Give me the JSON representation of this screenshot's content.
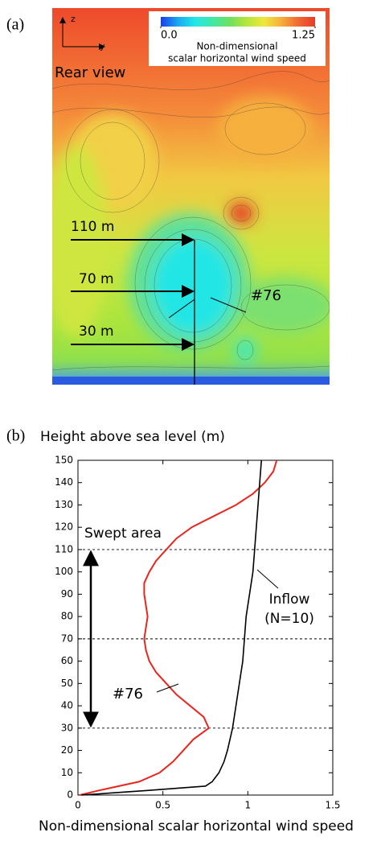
{
  "chart_data": [
    {
      "type": "contour",
      "panel_label": "(a)",
      "z_label": "z",
      "y_label": "y",
      "view_label": "Rear view",
      "colorbar": {
        "lim": [
          0,
          1.25
        ],
        "ticks": [
          {
            "value": 0,
            "label": "0.0"
          },
          1.25
        ],
        "colors": [
          "#1c3ee8",
          "#1aa8f0",
          "#22e8e8",
          "#40e8a8",
          "#6ee060",
          "#b4e63c",
          "#eee83a",
          "#f7b03a",
          "#f06a32",
          "#e63c28"
        ],
        "label_lines": [
          "Non-dimensional",
          "scalar horizontal wind speed"
        ]
      },
      "height_labels": [
        "110 m",
        "70 m",
        "30 m"
      ],
      "turbine_label": "#76"
    },
    {
      "type": "line",
      "panel_label": "(b)",
      "title": "Height above sea level (m)",
      "xlabel": "Non-dimensional scalar horizontal wind speed",
      "y": [
        0,
        2,
        4,
        6,
        10,
        15,
        20,
        25,
        30,
        35,
        40,
        45,
        50,
        55,
        60,
        65,
        70,
        75,
        80,
        85,
        90,
        95,
        100,
        105,
        110,
        115,
        120,
        125,
        130,
        135,
        140,
        145,
        150
      ],
      "series": [
        {
          "name": "#76",
          "color": "#e8261e",
          "values": [
            0.01,
            0.12,
            0.24,
            0.36,
            0.48,
            0.56,
            0.62,
            0.68,
            0.77,
            0.74,
            0.66,
            0.58,
            0.52,
            0.46,
            0.42,
            0.4,
            0.39,
            0.4,
            0.41,
            0.4,
            0.39,
            0.39,
            0.42,
            0.46,
            0.52,
            0.58,
            0.67,
            0.8,
            0.93,
            1.03,
            1.1,
            1.15,
            1.17
          ]
        },
        {
          "name": "Inflow (N=10)",
          "color": "#000000",
          "values": [
            0.02,
            0.4,
            0.75,
            0.79,
            0.83,
            0.86,
            0.88,
            0.895,
            0.91,
            0.92,
            0.93,
            0.94,
            0.95,
            0.96,
            0.97,
            0.975,
            0.98,
            0.985,
            0.99,
            1.0,
            1.01,
            1.02,
            1.03,
            1.035,
            1.04,
            1.045,
            1.05,
            1.055,
            1.06,
            1.065,
            1.07,
            1.075,
            1.08
          ]
        }
      ],
      "xlim": [
        0,
        1.5
      ],
      "xticks": [
        0,
        0.5,
        1,
        1.5
      ],
      "ylim": [
        0,
        150
      ],
      "yticks": [
        0,
        10,
        20,
        30,
        40,
        50,
        60,
        70,
        80,
        90,
        100,
        110,
        120,
        130,
        140,
        150
      ],
      "hlines": [
        30,
        70,
        110
      ],
      "span_label": "Swept area",
      "grid": false
    }
  ]
}
